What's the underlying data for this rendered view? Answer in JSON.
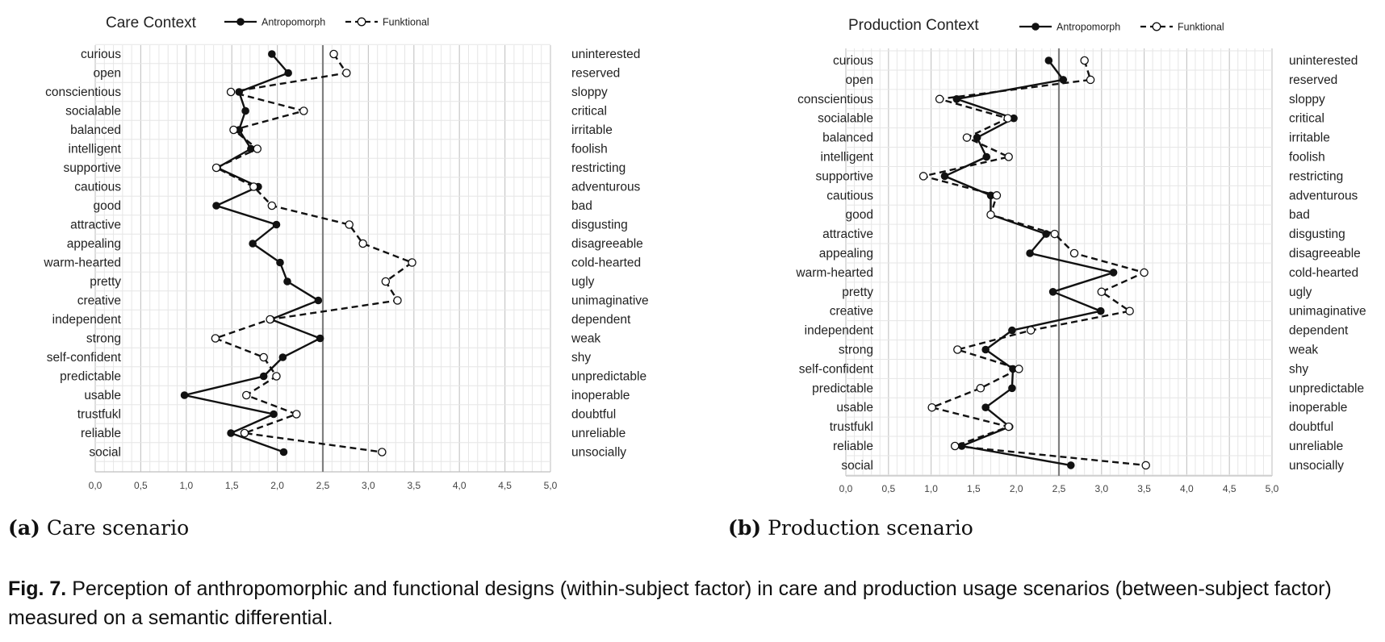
{
  "figure": {
    "caption_a_label": "(a)",
    "caption_a_text": "Care scenario",
    "caption_b_label": "(b)",
    "caption_b_text": "Production scenario",
    "fig_label": "Fig. 7.",
    "fig_text": "Perception of anthropomorphic and functional designs (within-subject factor) in care and production usage scenarios (between-subject factor) measured on a semantic differential."
  },
  "colors": {
    "line": "#111111",
    "grid": "#d9d9d9",
    "midline": "#808080"
  },
  "chart_data": [
    {
      "type": "line",
      "title": "Care Context",
      "xlim": [
        0,
        5
      ],
      "x_ticks": [
        "0,0",
        "0,5",
        "1,0",
        "1,5",
        "2,0",
        "2,5",
        "3,0",
        "3,5",
        "4,0",
        "4,5",
        "5,0"
      ],
      "midline": 2.5,
      "grid": true,
      "legend_position": "top",
      "left_labels": [
        "curious",
        "open",
        "conscientious",
        "socialable",
        "balanced",
        "intelligent",
        "supportive",
        "cautious",
        "good",
        "attractive",
        "appealing",
        "warm-hearted",
        "pretty",
        "creative",
        "independent",
        "strong",
        "self-confident",
        "predictable",
        "usable",
        "trustfukl",
        "reliable",
        "social"
      ],
      "right_labels": [
        "uninterested",
        "reserved",
        "sloppy",
        "critical",
        "irritable",
        "foolish",
        "restricting",
        "adventurous",
        "bad",
        "disgusting",
        "disagreeable",
        "cold-hearted",
        "ugly",
        "unimaginative",
        "dependent",
        "weak",
        "shy",
        "unpredictable",
        "inoperable",
        "doubtful",
        "unreliable",
        "unsocially"
      ],
      "series": [
        {
          "name": "Antropomorph",
          "style": "solid-filled",
          "values": [
            1.94,
            2.12,
            1.58,
            1.65,
            1.58,
            1.71,
            1.34,
            1.79,
            1.33,
            1.99,
            1.73,
            2.03,
            2.11,
            2.45,
            1.93,
            2.47,
            2.06,
            1.85,
            0.98,
            1.96,
            1.49,
            2.07
          ]
        },
        {
          "name": "Funktional",
          "style": "dashed-open",
          "values": [
            2.62,
            2.76,
            1.49,
            2.29,
            1.52,
            1.78,
            1.33,
            1.74,
            1.94,
            2.79,
            2.94,
            3.48,
            3.19,
            3.32,
            1.92,
            1.32,
            1.85,
            1.99,
            1.66,
            2.21,
            1.64,
            3.15
          ]
        }
      ]
    },
    {
      "type": "line",
      "title": "Production Context",
      "xlim": [
        0,
        5
      ],
      "x_ticks": [
        "0,0",
        "0,5",
        "1,0",
        "1,5",
        "2,0",
        "2,5",
        "3,0",
        "3,5",
        "4,0",
        "4,5",
        "5,0"
      ],
      "midline": 2.5,
      "grid": true,
      "legend_position": "top",
      "left_labels": [
        "curious",
        "open",
        "conscientious",
        "socialable",
        "balanced",
        "intelligent",
        "supportive",
        "cautious",
        "good",
        "attractive",
        "appealing",
        "warm-hearted",
        "pretty",
        "creative",
        "independent",
        "strong",
        "self-confident",
        "predictable",
        "usable",
        "trustfukl",
        "reliable",
        "social"
      ],
      "right_labels": [
        "uninterested",
        "reserved",
        "sloppy",
        "critical",
        "irritable",
        "foolish",
        "restricting",
        "adventurous",
        "bad",
        "disgusting",
        "disagreeable",
        "cold-hearted",
        "ugly",
        "unimaginative",
        "dependent",
        "weak",
        "shy",
        "unpredictable",
        "inoperable",
        "doubtful",
        "unreliable",
        "unsocially"
      ],
      "series": [
        {
          "name": "Antropomorph",
          "style": "solid-filled",
          "values": [
            2.38,
            2.55,
            1.3,
            1.97,
            1.54,
            1.65,
            1.16,
            1.7,
            1.7,
            2.35,
            2.16,
            3.14,
            2.43,
            2.99,
            1.95,
            1.64,
            1.96,
            1.95,
            1.64,
            1.92,
            1.36,
            2.64
          ]
        },
        {
          "name": "Funktional",
          "style": "dashed-open",
          "values": [
            2.8,
            2.87,
            1.1,
            1.9,
            1.42,
            1.91,
            0.91,
            1.77,
            1.7,
            2.45,
            2.68,
            3.5,
            3.0,
            3.33,
            2.17,
            1.31,
            2.03,
            1.58,
            1.01,
            1.91,
            1.28,
            3.52
          ]
        }
      ]
    }
  ]
}
